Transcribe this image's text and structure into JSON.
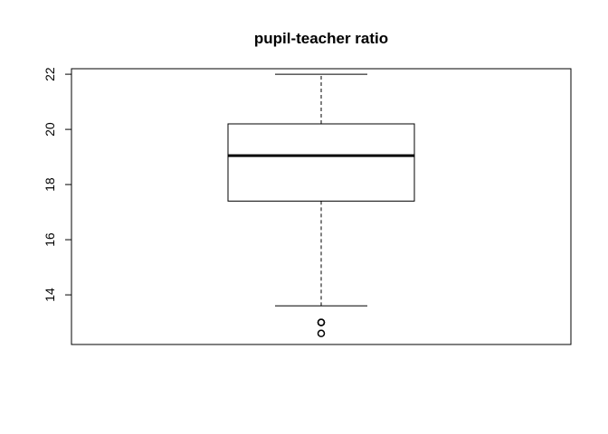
{
  "chart_data": {
    "type": "box",
    "title": "pupil-teacher ratio",
    "xlabel": "",
    "ylabel": "",
    "ylim": [
      12.2,
      22.2
    ],
    "yticks": [
      "14",
      "16",
      "18",
      "20",
      "22"
    ],
    "grid": false,
    "box": {
      "whisker_low": 13.6,
      "q1": 17.4,
      "median": 19.05,
      "q3": 20.2,
      "whisker_high": 22.0,
      "outliers": [
        13.0,
        13.0,
        12.6
      ]
    }
  }
}
